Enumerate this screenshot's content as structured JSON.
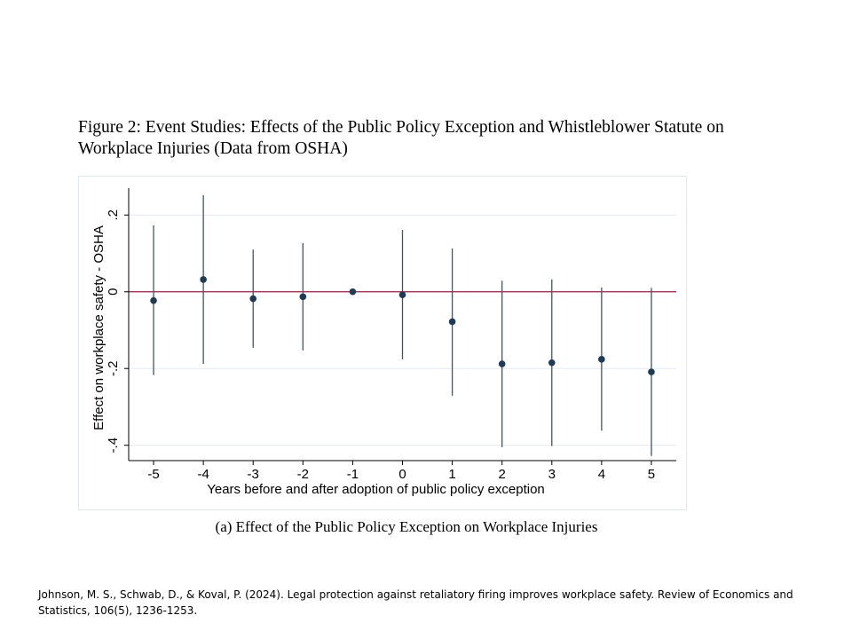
{
  "figure_title": "Figure 2: Event Studies: Effects of the Public Policy Exception and Whistleblower Statute on Workplace Injuries (Data from OSHA)",
  "caption": "(a) Effect of the Public Policy Exception on Workplace Injuries",
  "citation": "Johnson, M. S., Schwab, D., & Koval, P. (2024). Legal protection against retaliatory firing improves workplace safety. Review of Economics and Statistics, 106(5), 1236-1253.",
  "chart_data": {
    "type": "scatter",
    "subtype": "coefficient plot with 95% confidence intervals",
    "xlabel": "Years before and after adoption of public policy exception",
    "ylabel": "Effect on workplace safety - OSHA",
    "xlim": [
      -5.5,
      5.5
    ],
    "ylim": [
      -0.44,
      0.27
    ],
    "xticks": [
      -5,
      -4,
      -3,
      -2,
      -1,
      0,
      1,
      2,
      3,
      4,
      5
    ],
    "yticks": [
      -0.4,
      -0.2,
      0,
      0.2
    ],
    "ytick_labels": [
      "-.4",
      "-.2",
      "0",
      ".2"
    ],
    "grid": true,
    "reference_line_y": 0,
    "x": [
      -5,
      -4,
      -3,
      -2,
      -1,
      0,
      1,
      2,
      3,
      4,
      5
    ],
    "estimate": [
      -0.023,
      0.032,
      -0.018,
      -0.013,
      0.0,
      -0.008,
      -0.078,
      -0.188,
      -0.185,
      -0.176,
      -0.209
    ],
    "ci_low": [
      -0.217,
      -0.188,
      -0.146,
      -0.153,
      0.0,
      -0.176,
      -0.271,
      -0.405,
      -0.402,
      -0.362,
      -0.428
    ],
    "ci_high": [
      0.173,
      0.252,
      0.11,
      0.127,
      0.0,
      0.161,
      0.113,
      0.029,
      0.032,
      0.011,
      0.01
    ],
    "colors": {
      "marker": "#1f3a57",
      "ci": "#3d566e",
      "zero_line": "#9b1d45",
      "grid": "#e6ebf1",
      "axis": "#000000"
    }
  }
}
